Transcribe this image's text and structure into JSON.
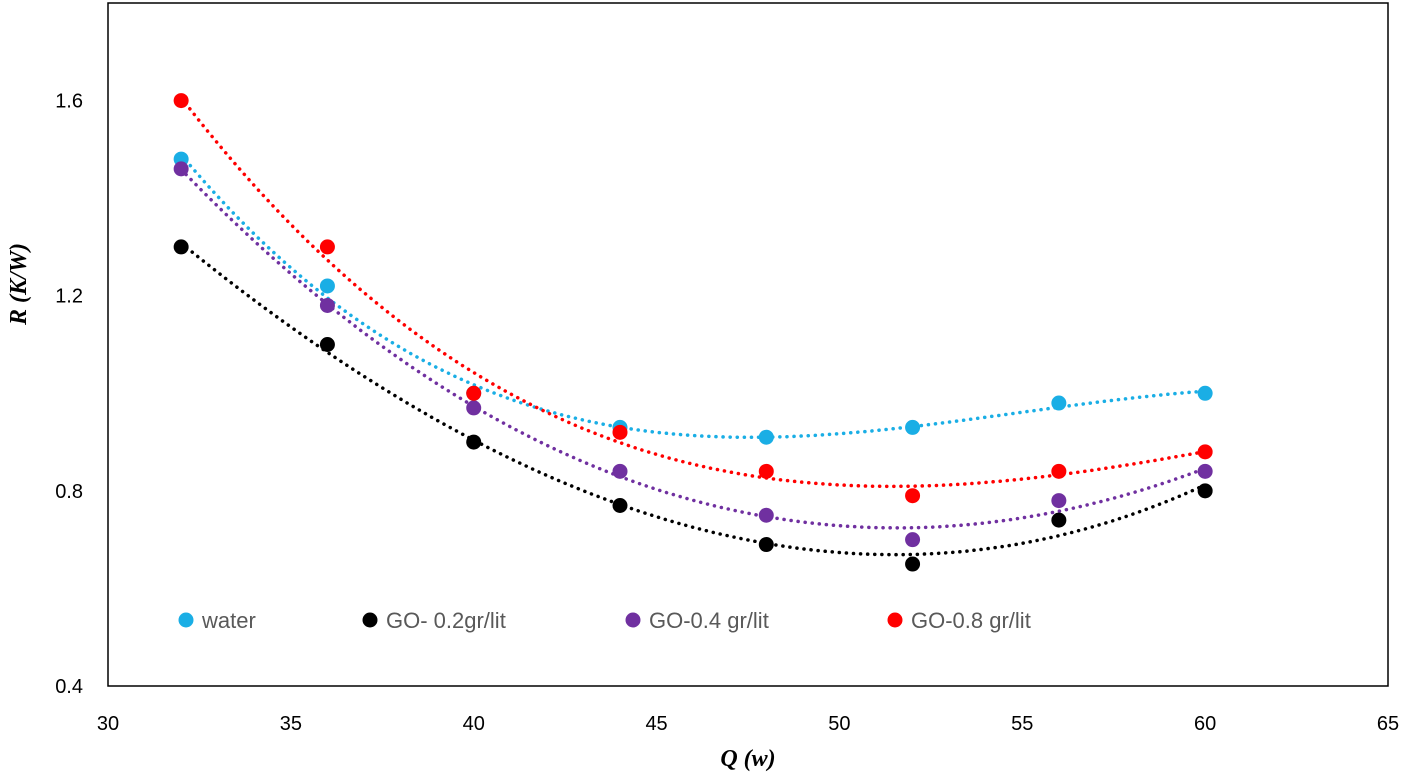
{
  "chart_data": {
    "type": "scatter",
    "xlabel": "Q (w)",
    "ylabel": "R (K/W)",
    "xlim": [
      30,
      65
    ],
    "ylim": [
      0.4,
      1.8
    ],
    "x_ticks": [
      30,
      35,
      40,
      45,
      50,
      55,
      60,
      65
    ],
    "x_tick_labels": [
      "30",
      "35",
      "40",
      "45",
      "50",
      "55",
      "60",
      "65"
    ],
    "y_ticks": [
      0.4,
      0.8,
      1.2,
      1.6
    ],
    "y_tick_labels": [
      "0.4",
      "0.8",
      "1.2",
      "1.6"
    ],
    "grid": false,
    "legend_position": "bottom-left inside",
    "trendline_style": "dotted polynomial",
    "x": [
      32,
      36,
      40,
      44,
      48,
      52,
      56,
      60
    ],
    "series": [
      {
        "name": "water",
        "color": "#1aaee5",
        "values": [
          1.48,
          1.22,
          1.0,
          0.93,
          0.91,
          0.93,
          0.98,
          1.0
        ]
      },
      {
        "name": "GO- 0.2gr/lit",
        "color": "#000000",
        "values": [
          1.3,
          1.1,
          0.9,
          0.77,
          0.69,
          0.65,
          0.74,
          0.8
        ]
      },
      {
        "name": "GO-0.4 gr/lit",
        "color": "#7030a0",
        "values": [
          1.46,
          1.18,
          0.97,
          0.84,
          0.75,
          0.7,
          0.78,
          0.84
        ]
      },
      {
        "name": "GO-0.8 gr/lit",
        "color": "#ff0000",
        "values": [
          1.6,
          1.3,
          1.0,
          0.92,
          0.84,
          0.79,
          0.84,
          0.88
        ]
      }
    ]
  }
}
